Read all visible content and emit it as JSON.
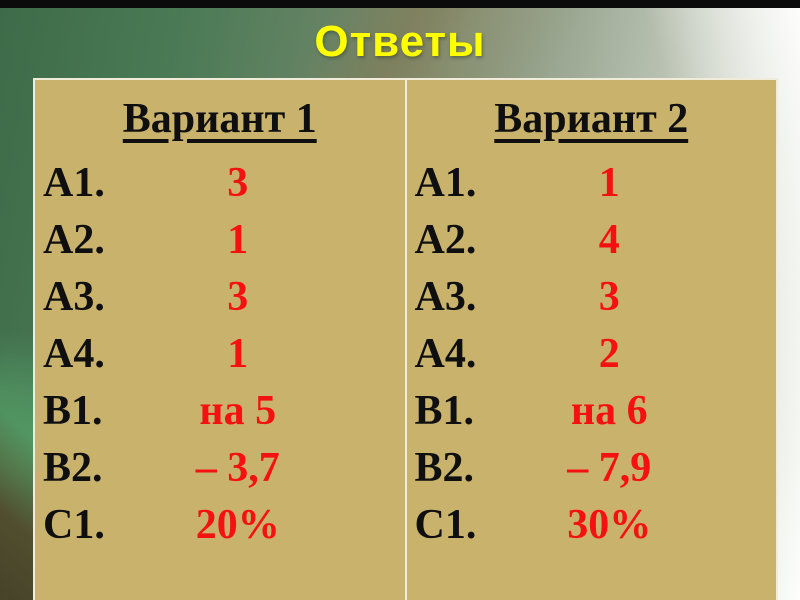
{
  "slide": {
    "title": "Ответы",
    "colors": {
      "title_yellow": "#ffff00",
      "answer_red": "#f51111",
      "label_black": "#0f0f0f",
      "table_tan": "#c9b26c",
      "table_border": "#f0ecd9",
      "top_bar": "#0b0b0b"
    },
    "columns": [
      {
        "header": "Вариант 1",
        "rows": [
          {
            "label": "А1.",
            "value": "3"
          },
          {
            "label": "А2.",
            "value": "1"
          },
          {
            "label": "А3.",
            "value": "3"
          },
          {
            "label": "А4.",
            "value": "1"
          },
          {
            "label": "В1.",
            "value": "на 5"
          },
          {
            "label": "В2.",
            "value": "– 3,7"
          },
          {
            "label": "С1.",
            "value": "20%"
          }
        ]
      },
      {
        "header": "Вариант 2",
        "rows": [
          {
            "label": "А1.",
            "value": "1"
          },
          {
            "label": "А2.",
            "value": "4"
          },
          {
            "label": "А3.",
            "value": "3"
          },
          {
            "label": "А4.",
            "value": "2"
          },
          {
            "label": "В1.",
            "value": "на 6"
          },
          {
            "label": "В2.",
            "value": "– 7,9"
          },
          {
            "label": "С1.",
            "value": "30%"
          }
        ]
      }
    ]
  }
}
